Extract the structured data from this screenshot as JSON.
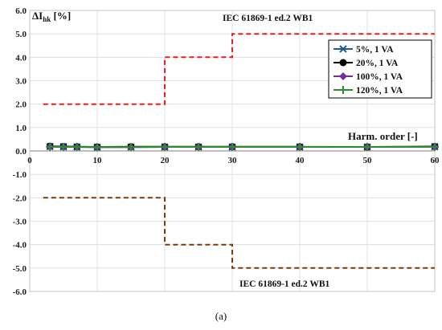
{
  "chart_data": {
    "type": "line",
    "ylabel_main": "ΔI",
    "ylabel_sub": "hk",
    "ylabel_unit": " [%]",
    "xlabel": "Harm. order [-]",
    "xlim": [
      0,
      60
    ],
    "ylim": [
      -6.0,
      6.0
    ],
    "xticks": [
      0,
      10,
      20,
      30,
      40,
      50,
      60
    ],
    "yticks": [
      6.0,
      5.0,
      4.0,
      3.0,
      2.0,
      1.0,
      0.0,
      -1.0,
      -2.0,
      -3.0,
      -4.0,
      -5.0,
      -6.0
    ],
    "ytick_labels": [
      "6.0",
      "5.0",
      "4.0",
      "3.0",
      "2.0",
      "1.0",
      "0.0",
      "-1.0",
      "-2.0",
      "-3.0",
      "-4.0",
      "-5.0",
      "-6.0"
    ],
    "grid": true,
    "legend_position": "top-right",
    "limits": [
      {
        "label": "IEC 61869-1 ed.2 WB1",
        "color": "#ee1c1c",
        "points": [
          [
            2,
            2.0
          ],
          [
            20,
            2.0
          ],
          [
            20,
            4.0
          ],
          [
            30,
            4.0
          ],
          [
            30,
            5.0
          ],
          [
            60,
            5.0
          ]
        ]
      },
      {
        "label": "IEC 61869-1 ed.2 WB1",
        "color": "#7a3b0a",
        "points": [
          [
            2,
            -2.0
          ],
          [
            20,
            -2.0
          ],
          [
            20,
            -4.0
          ],
          [
            30,
            -4.0
          ],
          [
            30,
            -5.0
          ],
          [
            60,
            -5.0
          ]
        ]
      }
    ],
    "series": [
      {
        "name": "5%, 1 VA",
        "color": "#1f5b8c",
        "marker": "x",
        "x": [
          3,
          5,
          7,
          10,
          15,
          20,
          25,
          30,
          40,
          50,
          60
        ],
        "values": [
          0.19,
          0.18,
          0.17,
          0.16,
          0.17,
          0.17,
          0.17,
          0.17,
          0.17,
          0.17,
          0.18
        ]
      },
      {
        "name": "20%, 1 VA",
        "color": "#000000",
        "marker": "circle",
        "x": [
          3,
          5,
          7,
          10,
          15,
          20,
          25,
          30,
          40,
          50,
          60
        ],
        "values": [
          0.2,
          0.19,
          0.18,
          0.17,
          0.18,
          0.18,
          0.18,
          0.18,
          0.18,
          0.17,
          0.19
        ]
      },
      {
        "name": "100%, 1 VA",
        "color": "#7030a0",
        "marker": "diamond",
        "x": [
          3,
          5,
          7,
          10,
          15,
          20,
          25,
          30,
          40,
          50,
          60
        ],
        "values": [
          0.18,
          0.17,
          0.17,
          0.16,
          0.16,
          0.17,
          0.17,
          0.17,
          0.17,
          0.17,
          0.17
        ]
      },
      {
        "name": "120%, 1 VA",
        "color": "#2e8b2e",
        "marker": "plus",
        "x": [
          3,
          5,
          7,
          10,
          15,
          20,
          25,
          30,
          40,
          50,
          60
        ],
        "values": [
          0.18,
          0.17,
          0.17,
          0.16,
          0.16,
          0.17,
          0.17,
          0.17,
          0.17,
          0.17,
          0.17
        ]
      }
    ],
    "caption": "(a)"
  }
}
